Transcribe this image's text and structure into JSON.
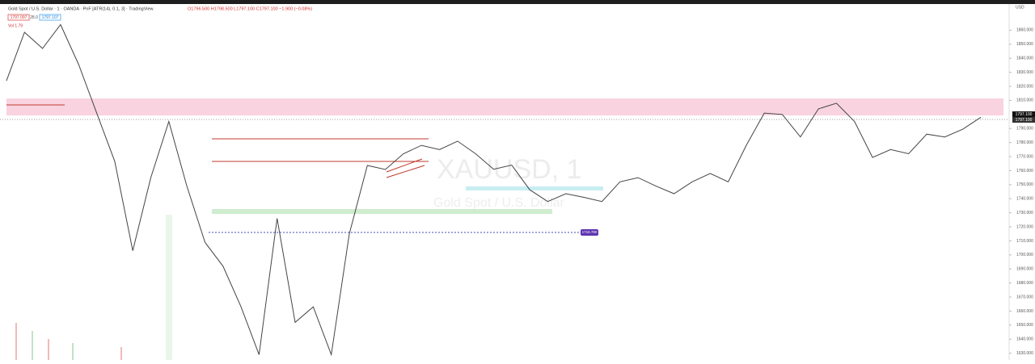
{
  "header": {
    "symbol": "Gold Spot / U.S. Dollar · 1 · OANDA · PnF [ATR(14), 0.1, 3] · TradingView",
    "ohlc": "O1796.500 H1798.500 L1797.100 C1797.100 −1.900 (−0.08%)",
    "sell": "1797.097",
    "spread": "28.0",
    "buy": "1797.107",
    "volume": "Vol 1.79"
  },
  "watermark": {
    "ticker": "XAUUSD, 1",
    "name": "Gold Spot / U.S. Dollar"
  },
  "currency": "USD",
  "price_tags": [
    "1797.100",
    "1797.100"
  ],
  "alert_label": "1716.780",
  "chart_data": {
    "type": "line",
    "name": "XAUUSD",
    "color": "#444444",
    "values": [
      1824,
      1858.5,
      1847,
      1864,
      1835.5,
      1801,
      1766.6,
      1703,
      1755,
      1795,
      1749,
      1709,
      1692,
      1663,
      1629,
      1726,
      1652,
      1663,
      1629,
      1715,
      1763.7,
      1760.8,
      1772,
      1778,
      1775,
      1781,
      1772,
      1761,
      1764,
      1746.4,
      1738,
      1743.6,
      1741,
      1738,
      1752,
      1755,
      1749,
      1743.6,
      1752,
      1758,
      1752,
      1778,
      1801,
      1800,
      1784,
      1804,
      1808,
      1795,
      1769.4,
      1775,
      1772,
      1786,
      1784,
      1789.5,
      1798
    ],
    "ylim": [
      1625.2,
      1881.5
    ],
    "yticks": [
      {
        "value": 1860,
        "label": "1860.000"
      },
      {
        "value": 1850,
        "label": "1850.000"
      },
      {
        "value": 1840,
        "label": "1840.000"
      },
      {
        "value": 1830,
        "label": "1830.000"
      },
      {
        "value": 1820,
        "label": "1820.000"
      },
      {
        "value": 1810,
        "label": "1810.000"
      },
      {
        "value": 1790,
        "label": "1790.000"
      },
      {
        "value": 1780,
        "label": "1780.000"
      },
      {
        "value": 1770,
        "label": "1770.000"
      },
      {
        "value": 1760,
        "label": "1760.000"
      },
      {
        "value": 1750,
        "label": "1750.000"
      },
      {
        "value": 1740,
        "label": "1740.000"
      },
      {
        "value": 1730,
        "label": "1730.000"
      },
      {
        "value": 1720,
        "label": "1720.000"
      },
      {
        "value": 1710,
        "label": "1710.000"
      },
      {
        "value": 1700,
        "label": "1700.000"
      },
      {
        "value": 1690,
        "label": "1690.000"
      },
      {
        "value": 1680,
        "label": "1680.000"
      },
      {
        "value": 1670,
        "label": "1670.000"
      },
      {
        "value": 1660,
        "label": "1660.000"
      },
      {
        "value": 1650,
        "label": "1650.000"
      },
      {
        "value": 1640,
        "label": "1640.000"
      },
      {
        "value": 1630,
        "label": "1630.000"
      }
    ]
  }
}
